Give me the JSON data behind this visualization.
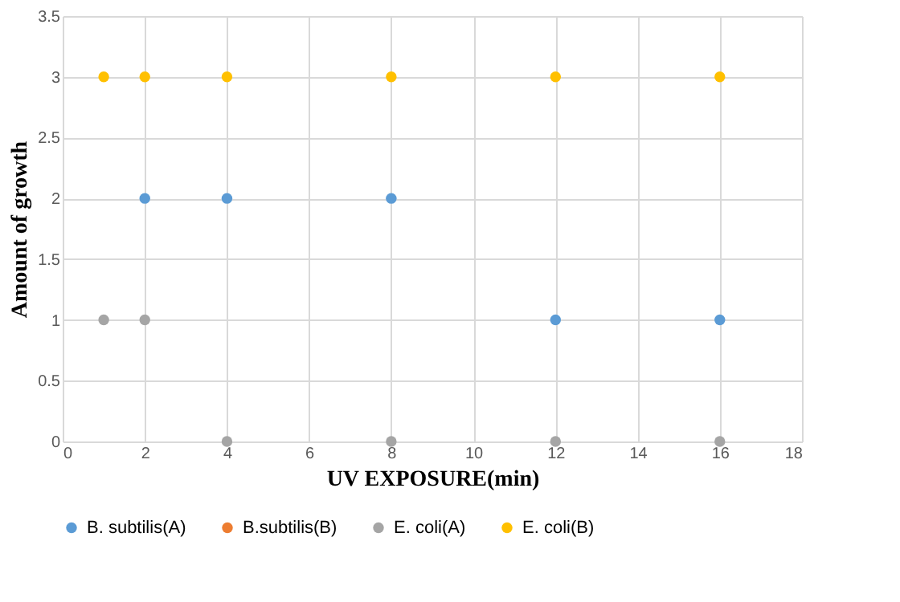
{
  "chart_data": {
    "type": "scatter",
    "xlabel": "UV EXPOSURE(min)",
    "ylabel": "Amount  of growth",
    "x": [
      1,
      2,
      4,
      8,
      12,
      16
    ],
    "series": [
      {
        "name": "B. subtilis(A)",
        "color": "#5b9bd5",
        "values": [
          null,
          2,
          2,
          2,
          1,
          1
        ]
      },
      {
        "name": "B.subtilis(B)",
        "color": "#ed7d31",
        "values": [
          null,
          null,
          null,
          null,
          null,
          null
        ]
      },
      {
        "name": "E. coli(A)",
        "color": "#a5a5a5",
        "values": [
          1,
          1,
          0,
          0,
          0,
          0
        ]
      },
      {
        "name": "E. coli(B)",
        "color": "#ffc000",
        "values": [
          3,
          3,
          3,
          3,
          3,
          3
        ]
      }
    ],
    "xlim": [
      0,
      18
    ],
    "xticks": [
      0,
      2,
      4,
      6,
      8,
      10,
      12,
      14,
      16,
      18
    ],
    "ylim": [
      0,
      3.5
    ],
    "yticks": [
      0,
      0.5,
      1,
      1.5,
      2,
      2.5,
      3,
      3.5
    ],
    "grid": true,
    "legend": "bottom",
    "marker": "circle"
  }
}
